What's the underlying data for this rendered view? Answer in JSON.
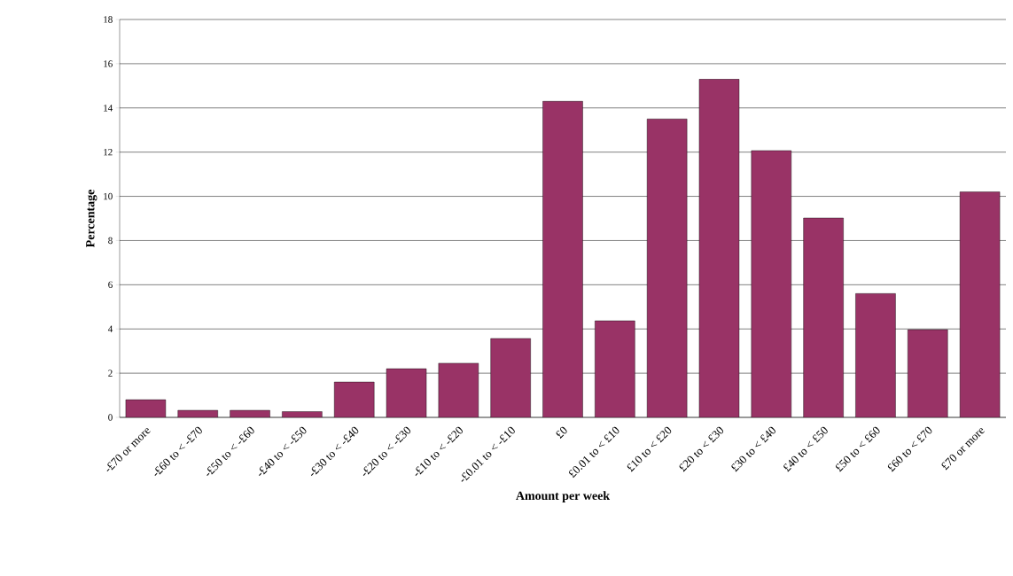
{
  "chart_data": {
    "type": "bar",
    "xlabel": "Amount per week",
    "ylabel": "Percentage",
    "categories": [
      "-£70 or more",
      "-£60 to < -£70",
      "-£50 to < -£60",
      "-£40 to < -£50",
      "-£30 to < -£40",
      "-£20 to < -£30",
      "-£10 to < -£20",
      "-£0.01 to < -£10",
      "£0",
      "£0.01 to < £10",
      "£10 to < £20",
      "£20 to < £30",
      "£30 to < £40",
      "£40 to < £50",
      "£50 to < £60",
      "£60 to < £70",
      "£70 or more"
    ],
    "values": [
      0.8,
      0.32,
      0.32,
      0.26,
      1.6,
      2.2,
      2.45,
      3.57,
      14.3,
      4.37,
      13.5,
      15.3,
      12.07,
      9.02,
      5.6,
      3.97,
      10.2
    ],
    "color": "#993366",
    "ylim": [
      0,
      18
    ],
    "yticks": [
      0,
      2,
      4,
      6,
      8,
      10,
      12,
      14,
      16,
      18
    ],
    "grid": "y"
  }
}
